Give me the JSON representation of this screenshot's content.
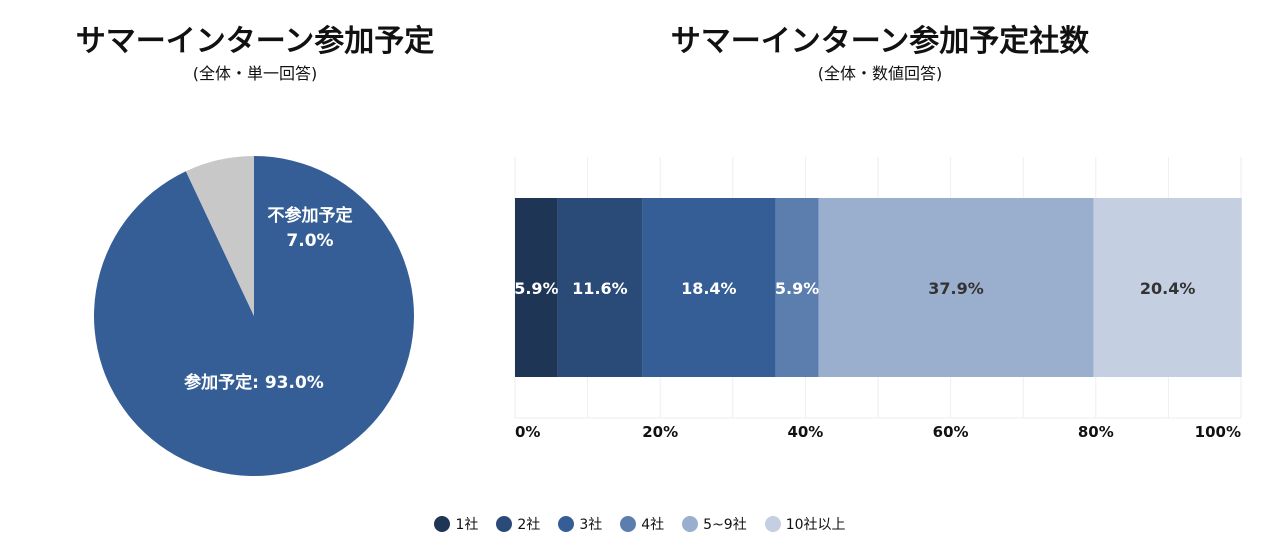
{
  "left": {
    "title": "サマーインターン参加予定",
    "subtitle": "(全体・単一回答)"
  },
  "right": {
    "title": "サマーインターン参加予定社数",
    "subtitle": "(全体・数値回答)"
  },
  "chart_data": [
    {
      "type": "pie",
      "slices": [
        {
          "label": "参加予定",
          "value": 93.0,
          "display": "参加予定: 93.0%",
          "color": "#355e96"
        },
        {
          "label": "不参加予定",
          "value": 7.0,
          "display_line1": "不参加予定",
          "display_line2": "7.0%",
          "color": "#c8c8c8"
        }
      ]
    },
    {
      "type": "bar",
      "orientation": "horizontal-stacked-100",
      "xlim": [
        0,
        100
      ],
      "xticks": [
        "0%",
        "20%",
        "40%",
        "60%",
        "80%",
        "100%"
      ],
      "grid": true,
      "legend_position": "bottom",
      "series": [
        {
          "name": "1社",
          "value": 5.9,
          "label": "5.9%",
          "color": "#1f3556",
          "text_color": "#ffffff"
        },
        {
          "name": "2社",
          "value": 11.6,
          "label": "11.6%",
          "color": "#2a4a78",
          "text_color": "#ffffff"
        },
        {
          "name": "3社",
          "value": 18.4,
          "label": "18.4%",
          "color": "#355e96",
          "text_color": "#ffffff"
        },
        {
          "name": "4社",
          "value": 5.9,
          "label": "5.9%",
          "color": "#5c7eae",
          "text_color": "#ffffff"
        },
        {
          "name": "5~9社",
          "value": 37.9,
          "label": "37.9%",
          "color": "#9aafcd",
          "text_color": "#333333"
        },
        {
          "name": "10社以上",
          "value": 20.4,
          "label": "20.4%",
          "color": "#c4cfe1",
          "text_color": "#333333"
        }
      ]
    }
  ]
}
